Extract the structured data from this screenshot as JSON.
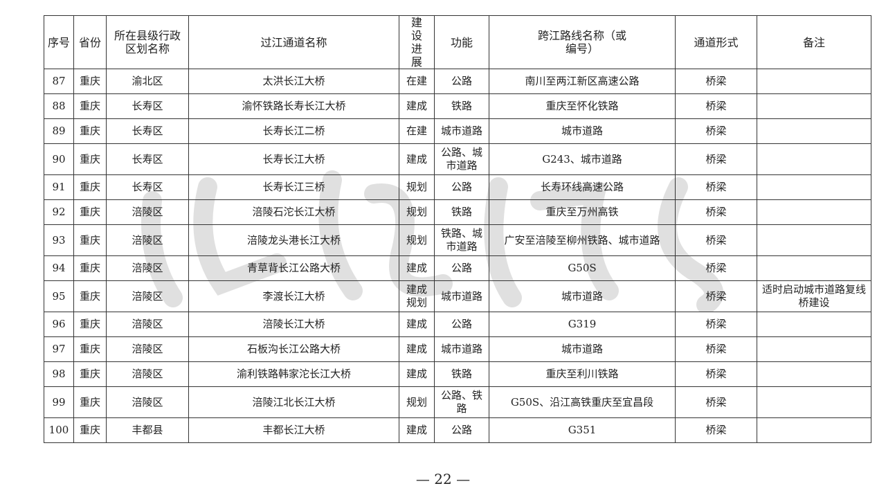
{
  "table": {
    "headers": [
      "序号",
      "省份",
      "所在县级行政区划名称",
      "过江通道名称",
      "建设进展",
      "功能",
      "跨江路线名称（或编号）",
      "通道形式",
      "备注"
    ],
    "rows": [
      [
        "87",
        "重庆",
        "渝北区",
        "太洪长江大桥",
        "在建",
        "公路",
        "南川至两江新区高速公路",
        "桥梁",
        ""
      ],
      [
        "88",
        "重庆",
        "长寿区",
        "渝怀铁路长寿长江大桥",
        "建成",
        "铁路",
        "重庆至怀化铁路",
        "桥梁",
        ""
      ],
      [
        "89",
        "重庆",
        "长寿区",
        "长寿长江二桥",
        "在建",
        "城市道路",
        "城市道路",
        "桥梁",
        ""
      ],
      [
        "90",
        "重庆",
        "长寿区",
        "长寿长江大桥",
        "建成",
        "公路、城市道路",
        "G243、城市道路",
        "桥梁",
        ""
      ],
      [
        "91",
        "重庆",
        "长寿区",
        "长寿长江三桥",
        "规划",
        "公路",
        "长寿环线高速公路",
        "桥梁",
        ""
      ],
      [
        "92",
        "重庆",
        "涪陵区",
        "涪陵石沱长江大桥",
        "规划",
        "铁路",
        "重庆至万州高铁",
        "桥梁",
        ""
      ],
      [
        "93",
        "重庆",
        "涪陵区",
        "涪陵龙头港长江大桥",
        "规划",
        "铁路、城市道路",
        "广安至涪陵至柳州铁路、城市道路",
        "桥梁",
        ""
      ],
      [
        "94",
        "重庆",
        "涪陵区",
        "青草背长江公路大桥",
        "建成",
        "公路",
        "G50S",
        "桥梁",
        ""
      ],
      [
        "95",
        "重庆",
        "涪陵区",
        "李渡长江大桥",
        "建成规划",
        "城市道路",
        "城市道路",
        "桥梁",
        "适时启动城市道路复线桥建设"
      ],
      [
        "96",
        "重庆",
        "涪陵区",
        "涪陵长江大桥",
        "建成",
        "公路",
        "G319",
        "桥梁",
        ""
      ],
      [
        "97",
        "重庆",
        "涪陵区",
        "石板沟长江公路大桥",
        "建成",
        "城市道路",
        "城市道路",
        "桥梁",
        ""
      ],
      [
        "98",
        "重庆",
        "涪陵区",
        "渝利铁路韩家沱长江大桥",
        "建成",
        "铁路",
        "重庆至利川铁路",
        "桥梁",
        ""
      ],
      [
        "99",
        "重庆",
        "涪陵区",
        "涪陵江北长江大桥",
        "规划",
        "公路、铁路",
        "G50S、沿江高铁重庆至宜昌段",
        "桥梁",
        ""
      ],
      [
        "100",
        "重庆",
        "丰都县",
        "丰都长江大桥",
        "建成",
        "公路",
        "G351",
        "桥梁",
        ""
      ]
    ]
  },
  "footer": {
    "page_number": "— 22 —"
  }
}
